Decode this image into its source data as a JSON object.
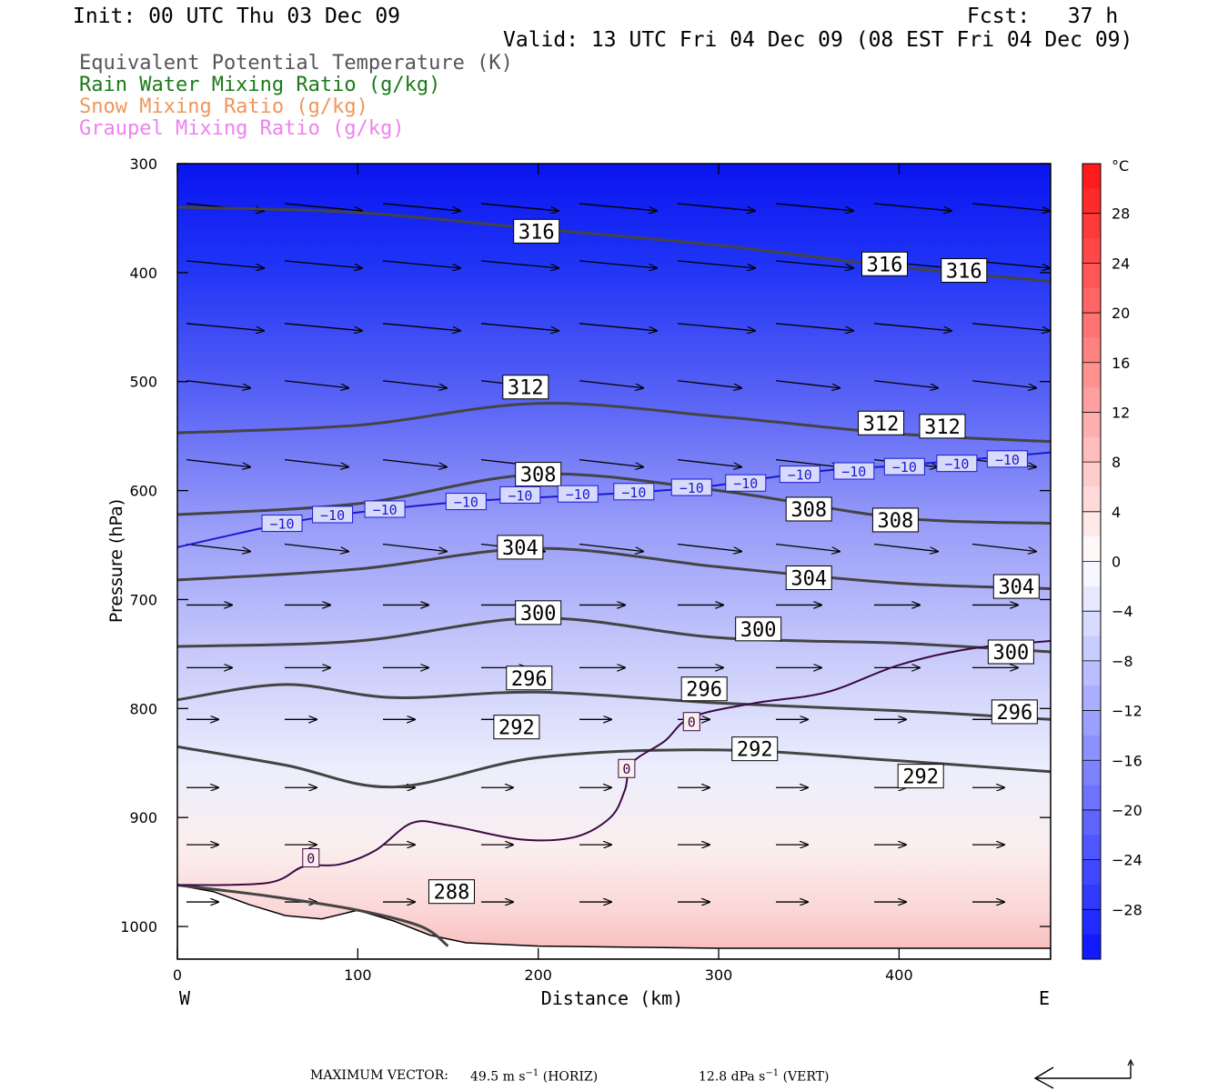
{
  "header": {
    "init": "Init: 00 UTC Thu 03 Dec 09",
    "fcst": "Fcst:   37 h",
    "valid": "Valid: 13 UTC Fri 04 Dec 09 (08 EST Fri 04 Dec 09)"
  },
  "legend": [
    {
      "label": "Equivalent Potential Temperature (K)",
      "color": "#555555"
    },
    {
      "label": "Rain Water Mixing Ratio (g/kg)",
      "color": "#1a7a1a"
    },
    {
      "label": "Snow Mixing Ratio (g/kg)",
      "color": "#f0965a"
    },
    {
      "label": "Graupel Mixing Ratio (g/kg)",
      "color": "#ee82ee"
    }
  ],
  "footer": {
    "label": "MAXIMUM VECTOR:",
    "horiz_value": "49.5 m s",
    "horiz_exp": "−1",
    "horiz_tag": "(HORIZ)",
    "vert_value": "12.8 dPa s",
    "vert_exp": "−1",
    "vert_tag": "(VERT)"
  },
  "chart_data": {
    "type": "cross-section",
    "xlabel": "Distance (km)",
    "ylabel": "Pressure (hPa)",
    "xlim": [
      0,
      484
    ],
    "ylim": [
      1030,
      300
    ],
    "x_ticks": [
      0,
      100,
      200,
      300,
      400
    ],
    "y_ticks": [
      300,
      400,
      500,
      600,
      700,
      800,
      900,
      1000
    ],
    "x_end_labels": {
      "left": "W",
      "right": "E"
    },
    "colorbar": {
      "unit": "°C",
      "levels": [
        28,
        24,
        20,
        16,
        12,
        8,
        4,
        0,
        -4,
        -8,
        -12,
        -16,
        -20,
        -24,
        -28
      ],
      "level_labels": [
        "28",
        "24",
        "20",
        "16",
        "12",
        "8",
        "4",
        "0",
        "−4",
        "−8",
        "−12",
        "−16",
        "−20",
        "−24",
        "−28"
      ],
      "range": [
        -32,
        32
      ]
    },
    "theta_e_contours": [
      {
        "value": 288,
        "points": [
          [
            0,
            962
          ],
          [
            50,
            972
          ],
          [
            100,
            985
          ],
          [
            135,
            1000
          ],
          [
            150,
            1018
          ]
        ]
      },
      {
        "value": 292,
        "points": [
          [
            0,
            835
          ],
          [
            60,
            852
          ],
          [
            120,
            872
          ],
          [
            200,
            845
          ],
          [
            300,
            838
          ],
          [
            400,
            848
          ],
          [
            484,
            858
          ]
        ]
      },
      {
        "value": 296,
        "points": [
          [
            0,
            792
          ],
          [
            60,
            778
          ],
          [
            120,
            790
          ],
          [
            200,
            785
          ],
          [
            300,
            795
          ],
          [
            400,
            802
          ],
          [
            484,
            810
          ]
        ]
      },
      {
        "value": 300,
        "points": [
          [
            0,
            743
          ],
          [
            100,
            738
          ],
          [
            200,
            717
          ],
          [
            300,
            735
          ],
          [
            400,
            740
          ],
          [
            484,
            748
          ]
        ]
      },
      {
        "value": 304,
        "points": [
          [
            0,
            682
          ],
          [
            100,
            672
          ],
          [
            200,
            653
          ],
          [
            300,
            670
          ],
          [
            400,
            685
          ],
          [
            484,
            690
          ]
        ]
      },
      {
        "value": 308,
        "points": [
          [
            0,
            622
          ],
          [
            100,
            612
          ],
          [
            200,
            585
          ],
          [
            300,
            600
          ],
          [
            400,
            625
          ],
          [
            484,
            630
          ]
        ]
      },
      {
        "value": 312,
        "points": [
          [
            0,
            547
          ],
          [
            100,
            540
          ],
          [
            200,
            520
          ],
          [
            300,
            532
          ],
          [
            400,
            548
          ],
          [
            484,
            555
          ]
        ]
      },
      {
        "value": 316,
        "points": [
          [
            0,
            340
          ],
          [
            100,
            345
          ],
          [
            200,
            360
          ],
          [
            300,
            375
          ],
          [
            400,
            395
          ],
          [
            484,
            408
          ]
        ]
      }
    ],
    "theta_e_labels": [
      {
        "value": "288",
        "x": 152,
        "p": 968
      },
      {
        "value": "292",
        "x": 188,
        "p": 817
      },
      {
        "value": "292",
        "x": 320,
        "p": 837
      },
      {
        "value": "292",
        "x": 412,
        "p": 862
      },
      {
        "value": "296",
        "x": 195,
        "p": 772
      },
      {
        "value": "296",
        "x": 292,
        "p": 782
      },
      {
        "value": "296",
        "x": 464,
        "p": 803
      },
      {
        "value": "300",
        "x": 200,
        "p": 712
      },
      {
        "value": "300",
        "x": 322,
        "p": 727
      },
      {
        "value": "300",
        "x": 462,
        "p": 748
      },
      {
        "value": "304",
        "x": 190,
        "p": 652
      },
      {
        "value": "304",
        "x": 350,
        "p": 680
      },
      {
        "value": "304",
        "x": 465,
        "p": 688
      },
      {
        "value": "308",
        "x": 200,
        "p": 585
      },
      {
        "value": "308",
        "x": 350,
        "p": 617
      },
      {
        "value": "308",
        "x": 398,
        "p": 627
      },
      {
        "value": "312",
        "x": 193,
        "p": 505
      },
      {
        "value": "312",
        "x": 390,
        "p": 538
      },
      {
        "value": "312",
        "x": 424,
        "p": 541
      },
      {
        "value": "316",
        "x": 199,
        "p": 362
      },
      {
        "value": "316",
        "x": 392,
        "p": 392
      },
      {
        "value": "316",
        "x": 436,
        "p": 398
      }
    ],
    "isotherm_minus10": {
      "value": "−10",
      "points": [
        [
          0,
          652
        ],
        [
          60,
          630
        ],
        [
          100,
          620
        ],
        [
          160,
          610
        ],
        [
          250,
          602
        ],
        [
          300,
          595
        ],
        [
          350,
          583
        ],
        [
          400,
          577
        ],
        [
          450,
          570
        ],
        [
          484,
          565
        ]
      ],
      "label_positions": [
        [
          58,
          630
        ],
        [
          86,
          622
        ],
        [
          115,
          617
        ],
        [
          160,
          610
        ],
        [
          190,
          604
        ],
        [
          222,
          603
        ],
        [
          253,
          601
        ],
        [
          285,
          597
        ],
        [
          315,
          593
        ],
        [
          345,
          585
        ],
        [
          375,
          582
        ],
        [
          403,
          578
        ],
        [
          432,
          575
        ],
        [
          460,
          571
        ]
      ]
    },
    "isotherm_zero": {
      "value": "0",
      "points": [
        [
          0,
          962
        ],
        [
          50,
          960
        ],
        [
          70,
          945
        ],
        [
          90,
          943
        ],
        [
          110,
          930
        ],
        [
          130,
          905
        ],
        [
          150,
          907
        ],
        [
          190,
          920
        ],
        [
          220,
          918
        ],
        [
          240,
          900
        ],
        [
          248,
          875
        ],
        [
          252,
          850
        ],
        [
          270,
          830
        ],
        [
          285,
          808
        ],
        [
          320,
          795
        ],
        [
          360,
          785
        ],
        [
          400,
          760
        ],
        [
          440,
          745
        ],
        [
          484,
          738
        ]
      ],
      "label_positions": [
        [
          74,
          937
        ],
        [
          249,
          855
        ],
        [
          285,
          812
        ]
      ]
    }
  }
}
